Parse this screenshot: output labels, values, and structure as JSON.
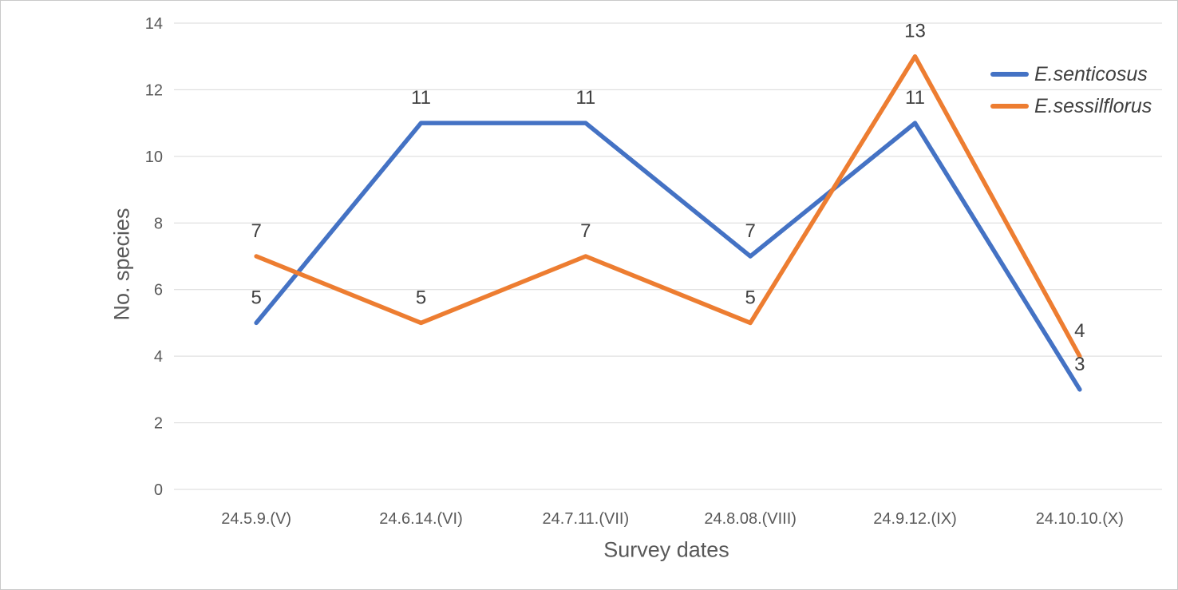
{
  "chart_data": {
    "type": "line",
    "title": "",
    "xlabel": "Survey dates",
    "ylabel": "No. species",
    "categories": [
      "24.5.9.(V)",
      "24.6.14.(VI)",
      "24.7.11.(VII)",
      "24.8.08.(VIII)",
      "24.9.12.(IX)",
      "24.10.10.(X)"
    ],
    "series": [
      {
        "name": "E.senticosus",
        "color": "#4472C4",
        "values": [
          5,
          11,
          11,
          7,
          11,
          3
        ]
      },
      {
        "name": "E.sessilflorus",
        "color": "#ED7D31",
        "values": [
          7,
          5,
          7,
          5,
          13,
          4
        ]
      }
    ],
    "ylim": [
      0,
      14
    ],
    "yticks": [
      0,
      2,
      4,
      6,
      8,
      10,
      12,
      14
    ],
    "grid": "horizontal",
    "legend_position": "top-right",
    "data_labels": true,
    "gridline_color": "#D9D9D9",
    "axis_text_color": "#595959",
    "data_label_color": "#404040"
  }
}
